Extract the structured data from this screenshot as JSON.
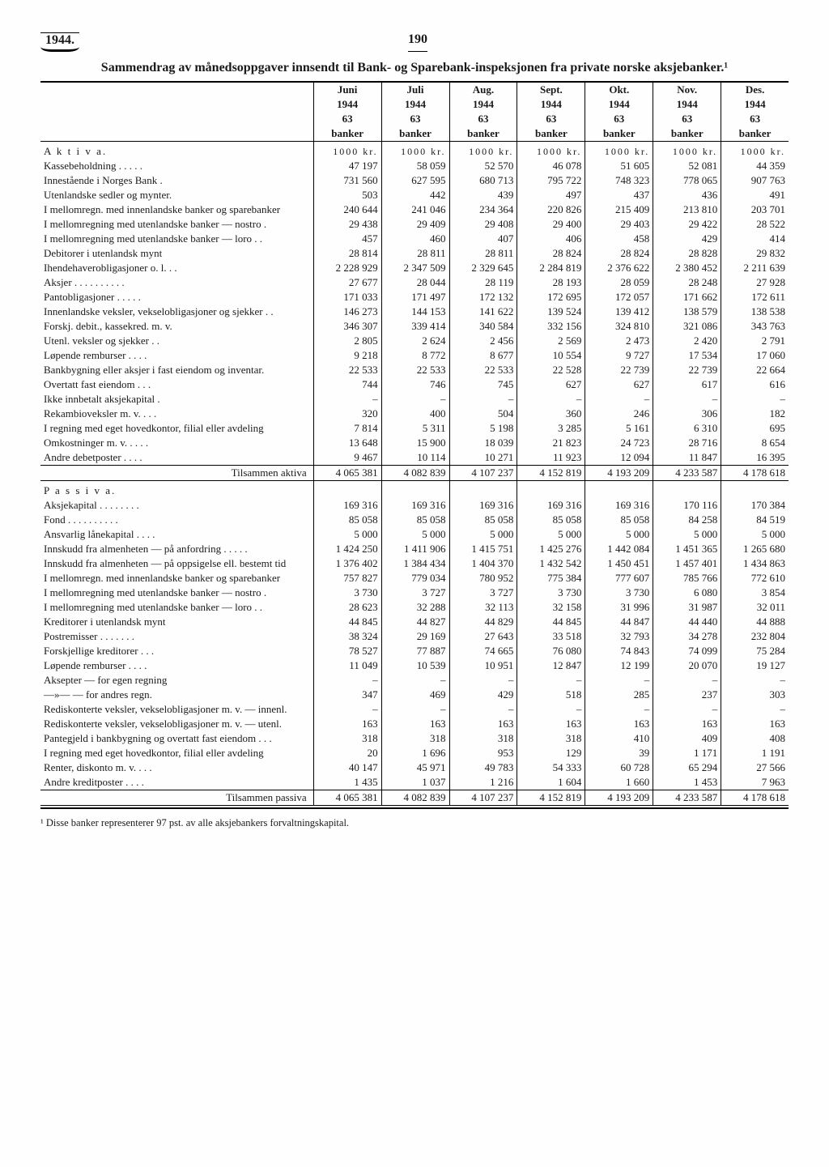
{
  "page": {
    "year": "1944.",
    "number": "190"
  },
  "title": "Sammendrag av månedsoppgaver innsendt til Bank- og Sparebank-inspeksjonen fra private norske aksjebanker.¹",
  "columns": [
    {
      "month": "Juni",
      "year": "1944",
      "banks": "63",
      "bankword": "banker",
      "unit": "1000 kr."
    },
    {
      "month": "Juli",
      "year": "1944",
      "banks": "63",
      "bankword": "banker",
      "unit": "1000 kr."
    },
    {
      "month": "Aug.",
      "year": "1944",
      "banks": "63",
      "bankword": "banker",
      "unit": "1000 kr."
    },
    {
      "month": "Sept.",
      "year": "1944",
      "banks": "63",
      "bankword": "banker",
      "unit": "1000 kr."
    },
    {
      "month": "Okt.",
      "year": "1944",
      "banks": "63",
      "bankword": "banker",
      "unit": "1000 kr."
    },
    {
      "month": "Nov.",
      "year": "1944",
      "banks": "63",
      "bankword": "banker",
      "unit": "1000 kr."
    },
    {
      "month": "Des.",
      "year": "1944",
      "banks": "63",
      "bankword": "banker",
      "unit": "1000 kr."
    }
  ],
  "aktiva_head": "A k t i v a.",
  "passiva_head": "P a s s i v a.",
  "aktiva": [
    {
      "l": "Kassebeholdning . . . . .",
      "v": [
        "47 197",
        "58 059",
        "52 570",
        "46 078",
        "51 605",
        "52 081",
        "44 359"
      ]
    },
    {
      "l": "Innestående i Norges Bank .",
      "v": [
        "731 560",
        "627 595",
        "680 713",
        "795 722",
        "748 323",
        "778 065",
        "907 763"
      ]
    },
    {
      "l": "Utenlandske sedler og mynter.",
      "v": [
        "503",
        "442",
        "439",
        "497",
        "437",
        "436",
        "491"
      ]
    },
    {
      "l": "I mellomregn. med innenlandske banker og sparebanker",
      "v": [
        "240 644",
        "241 046",
        "234 364",
        "220 826",
        "215 409",
        "213 810",
        "203 701"
      ]
    },
    {
      "l": "I mellomregning med utenlandske banker — nostro .",
      "v": [
        "29 438",
        "29 409",
        "29 408",
        "29 400",
        "29 403",
        "29 422",
        "28 522"
      ]
    },
    {
      "l": "I mellomregning med utenlandske banker — loro . .",
      "v": [
        "457",
        "460",
        "407",
        "406",
        "458",
        "429",
        "414"
      ]
    },
    {
      "l": "Debitorer i utenlandsk mynt",
      "v": [
        "28 814",
        "28 811",
        "28 811",
        "28 824",
        "28 824",
        "28 828",
        "29 832"
      ]
    },
    {
      "l": "Ihendehaverobligasjoner o. l. . .",
      "v": [
        "2 228 929",
        "2 347 509",
        "2 329 645",
        "2 284 819",
        "2 376 622",
        "2 380 452",
        "2 211 639"
      ]
    },
    {
      "l": "Aksjer . . . . . . . . . .",
      "v": [
        "27 677",
        "28 044",
        "28 119",
        "28 193",
        "28 059",
        "28 248",
        "27 928"
      ]
    },
    {
      "l": "Pantobligasjoner . . . . .",
      "v": [
        "171 033",
        "171 497",
        "172 132",
        "172 695",
        "172 057",
        "171 662",
        "172 611"
      ]
    },
    {
      "l": "Innenlandske veksler, vekselobligasjoner og sjekker . .",
      "v": [
        "146 273",
        "144 153",
        "141 622",
        "139 524",
        "139 412",
        "138 579",
        "138 538"
      ]
    },
    {
      "l": "Forskj. debit., kassekred. m. v.",
      "v": [
        "346 307",
        "339 414",
        "340 584",
        "332 156",
        "324 810",
        "321 086",
        "343 763"
      ]
    },
    {
      "l": "Utenl. veksler og sjekker . .",
      "v": [
        "2 805",
        "2 624",
        "2 456",
        "2 569",
        "2 473",
        "2 420",
        "2 791"
      ]
    },
    {
      "l": "Løpende remburser . . . .",
      "v": [
        "9 218",
        "8 772",
        "8 677",
        "10 554",
        "9 727",
        "17 534",
        "17 060"
      ]
    },
    {
      "l": "Bankbygning eller aksjer i fast eiendom og inventar.",
      "v": [
        "22 533",
        "22 533",
        "22 533",
        "22 528",
        "22 739",
        "22 739",
        "22 664"
      ]
    },
    {
      "l": "Overtatt fast eiendom  . . .",
      "v": [
        "744",
        "746",
        "745",
        "627",
        "627",
        "617",
        "616"
      ]
    },
    {
      "l": "Ikke innbetalt aksjekapital .",
      "v": [
        "–",
        "–",
        "–",
        "–",
        "–",
        "–",
        "–"
      ]
    },
    {
      "l": "Rekambioveksler m. v. . . .",
      "v": [
        "320",
        "400",
        "504",
        "360",
        "246",
        "306",
        "182"
      ]
    },
    {
      "l": "I regning med eget hovedkontor, filial eller avdeling",
      "v": [
        "7 814",
        "5 311",
        "5 198",
        "3 285",
        "5 161",
        "6 310",
        "695"
      ]
    },
    {
      "l": "Omkostninger m. v.  . . . .",
      "v": [
        "13 648",
        "15 900",
        "18 039",
        "21 823",
        "24 723",
        "28 716",
        "8 654"
      ]
    },
    {
      "l": "Andre debetposter . . . .",
      "v": [
        "9 467",
        "10 114",
        "10 271",
        "11 923",
        "12 094",
        "11 847",
        "16 395"
      ]
    }
  ],
  "aktiva_total": {
    "l": "Tilsammen aktiva",
    "v": [
      "4 065 381",
      "4 082 839",
      "4 107 237",
      "4 152 819",
      "4 193 209",
      "4 233 587",
      "4 178 618"
    ]
  },
  "passiva": [
    {
      "l": "Aksjekapital . . . . . . . .",
      "v": [
        "169 316",
        "169 316",
        "169 316",
        "169 316",
        "169 316",
        "170 116",
        "170 384"
      ]
    },
    {
      "l": "Fond  . . . . . . . . . .",
      "v": [
        "85 058",
        "85 058",
        "85 058",
        "85 058",
        "85 058",
        "84 258",
        "84 519"
      ]
    },
    {
      "l": "Ansvarlig lånekapital . . . .",
      "v": [
        "5 000",
        "5 000",
        "5 000",
        "5 000",
        "5 000",
        "5 000",
        "5 000"
      ]
    },
    {
      "l": "Innskudd fra almenheten — på anfordring  . . . . .",
      "v": [
        "1 424 250",
        "1 411 906",
        "1 415 751",
        "1 425 276",
        "1 442 084",
        "1 451 365",
        "1 265 680"
      ]
    },
    {
      "l": "Innskudd fra almenheten — på oppsigelse ell. bestemt tid",
      "v": [
        "1 376 402",
        "1 384 434",
        "1 404 370",
        "1 432 542",
        "1 450 451",
        "1 457 401",
        "1 434 863"
      ]
    },
    {
      "l": "I mellomregn. med innenlandske banker og sparebanker",
      "v": [
        "757 827",
        "779 034",
        "780 952",
        "775 384",
        "777 607",
        "785 766",
        "772 610"
      ]
    },
    {
      "l": "I mellomregning med utenlandske banker — nostro .",
      "v": [
        "3 730",
        "3 727",
        "3 727",
        "3 730",
        "3 730",
        "6 080",
        "3 854"
      ]
    },
    {
      "l": "I mellomregning med utenlandske banker — loro . .",
      "v": [
        "28 623",
        "32 288",
        "32 113",
        "32 158",
        "31 996",
        "31 987",
        "32 011"
      ]
    },
    {
      "l": "Kreditorer i utenlandsk mynt",
      "v": [
        "44 845",
        "44 827",
        "44 829",
        "44 845",
        "44 847",
        "44 440",
        "44 888"
      ]
    },
    {
      "l": "Postremisser . . . . . . .",
      "v": [
        "38 324",
        "29 169",
        "27 643",
        "33 518",
        "32 793",
        "34 278",
        "232 804"
      ]
    },
    {
      "l": "Forskjellige kreditorer  . . .",
      "v": [
        "78 527",
        "77 887",
        "74 665",
        "76 080",
        "74 843",
        "74 099",
        "75 284"
      ]
    },
    {
      "l": "Løpende remburser . . . .",
      "v": [
        "11 049",
        "10 539",
        "10 951",
        "12 847",
        "12 199",
        "20 070",
        "19 127"
      ]
    },
    {
      "l": "Aksepter — for egen regning",
      "v": [
        "–",
        "–",
        "–",
        "–",
        "–",
        "–",
        "–"
      ]
    },
    {
      "l": "—»—   — for andres regn.",
      "v": [
        "347",
        "469",
        "429",
        "518",
        "285",
        "237",
        "303"
      ]
    },
    {
      "l": "Rediskonterte veksler, vekselobligasjoner m. v. — innenl.",
      "v": [
        "–",
        "–",
        "–",
        "–",
        "–",
        "–",
        "–"
      ]
    },
    {
      "l": "Rediskonterte veksler, vekselobligasjoner m. v. — utenl.",
      "v": [
        "163",
        "163",
        "163",
        "163",
        "163",
        "163",
        "163"
      ]
    },
    {
      "l": "Pantegjeld i bankbygning og overtatt fast eiendom . . .",
      "v": [
        "318",
        "318",
        "318",
        "318",
        "410",
        "409",
        "408"
      ]
    },
    {
      "l": "I regning med eget hovedkontor, filial eller avdeling",
      "v": [
        "20",
        "1 696",
        "953",
        "129",
        "39",
        "1 171",
        "1 191"
      ]
    },
    {
      "l": "Renter, diskonto m. v. . . .",
      "v": [
        "40 147",
        "45 971",
        "49 783",
        "54 333",
        "60 728",
        "65 294",
        "27 566"
      ]
    },
    {
      "l": "Andre kreditposter . . . .",
      "v": [
        "1 435",
        "1 037",
        "1 216",
        "1 604",
        "1 660",
        "1 453",
        "7 963"
      ]
    }
  ],
  "passiva_total": {
    "l": "Tilsammen passiva",
    "v": [
      "4 065 381",
      "4 082 839",
      "4 107 237",
      "4 152 819",
      "4 193 209",
      "4 233 587",
      "4 178 618"
    ]
  },
  "footnote": "¹ Disse banker representerer 97 pst. av alle aksjebankers forvaltningskapital."
}
